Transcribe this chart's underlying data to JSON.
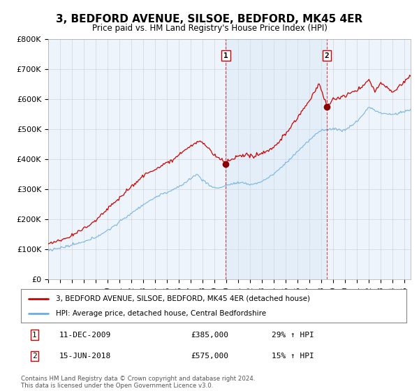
{
  "title": "3, BEDFORD AVENUE, SILSOE, BEDFORD, MK45 4ER",
  "subtitle": "Price paid vs. HM Land Registry's House Price Index (HPI)",
  "ylim": [
    0,
    800000
  ],
  "yticks": [
    0,
    100000,
    200000,
    300000,
    400000,
    500000,
    600000,
    700000,
    800000
  ],
  "ytick_labels": [
    "£0",
    "£100K",
    "£200K",
    "£300K",
    "£400K",
    "£500K",
    "£600K",
    "£700K",
    "£800K"
  ],
  "hpi_color": "#6aaee0",
  "price_color": "#cc0000",
  "point1_year": 2009.95,
  "point1_price": 385000,
  "point1_date": "11-DEC-2009",
  "point1_pct": "29%",
  "point2_year": 2018.45,
  "point2_price": 575000,
  "point2_date": "15-JUN-2018",
  "point2_pct": "15%",
  "legend_label_price": "3, BEDFORD AVENUE, SILSOE, BEDFORD, MK45 4ER (detached house)",
  "legend_label_hpi": "HPI: Average price, detached house, Central Bedfordshire",
  "footer": "Contains HM Land Registry data © Crown copyright and database right 2024.\nThis data is licensed under the Open Government Licence v3.0.",
  "background_color": "#ffffff",
  "plot_bg_color": "#eef4fb",
  "grid_color": "#cccccc",
  "span_color": "#d0e5f7"
}
